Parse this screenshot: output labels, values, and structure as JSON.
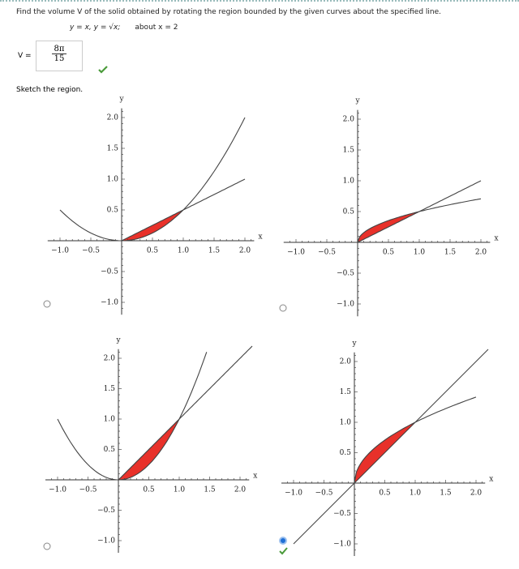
{
  "question": "Find the volume V of the solid obtained by rotating the region bounded by the given curves about the specified line.",
  "curves": "y = x, y = √x;",
  "axis_of_rotation": "about x = 2",
  "answer": {
    "label": "V =",
    "numerator": "8π",
    "denominator": "15"
  },
  "prompt": "Sketch the region.",
  "graph_axes": {
    "x_label": "x",
    "y_label": "y",
    "xticks": [
      {
        "value": -1,
        "label": "−1.0"
      },
      {
        "value": -0.5,
        "label": "−0.5"
      },
      {
        "value": 0.5,
        "label": "0.5"
      },
      {
        "value": 1,
        "label": "1.0"
      },
      {
        "value": 1.5,
        "label": "1.5"
      },
      {
        "value": 2,
        "label": "2.0"
      }
    ],
    "yticks": [
      {
        "value": 2,
        "label": "2.0"
      },
      {
        "value": 1.5,
        "label": "1.5"
      },
      {
        "value": 1,
        "label": "1.0"
      },
      {
        "value": 0.5,
        "label": "0.5"
      },
      {
        "value": -0.5,
        "label": "−0.5"
      },
      {
        "value": -1,
        "label": "−1.0"
      }
    ]
  },
  "graphs": [
    {
      "selected": false
    },
    {
      "selected": false
    },
    {
      "selected": false
    },
    {
      "selected": true
    }
  ]
}
